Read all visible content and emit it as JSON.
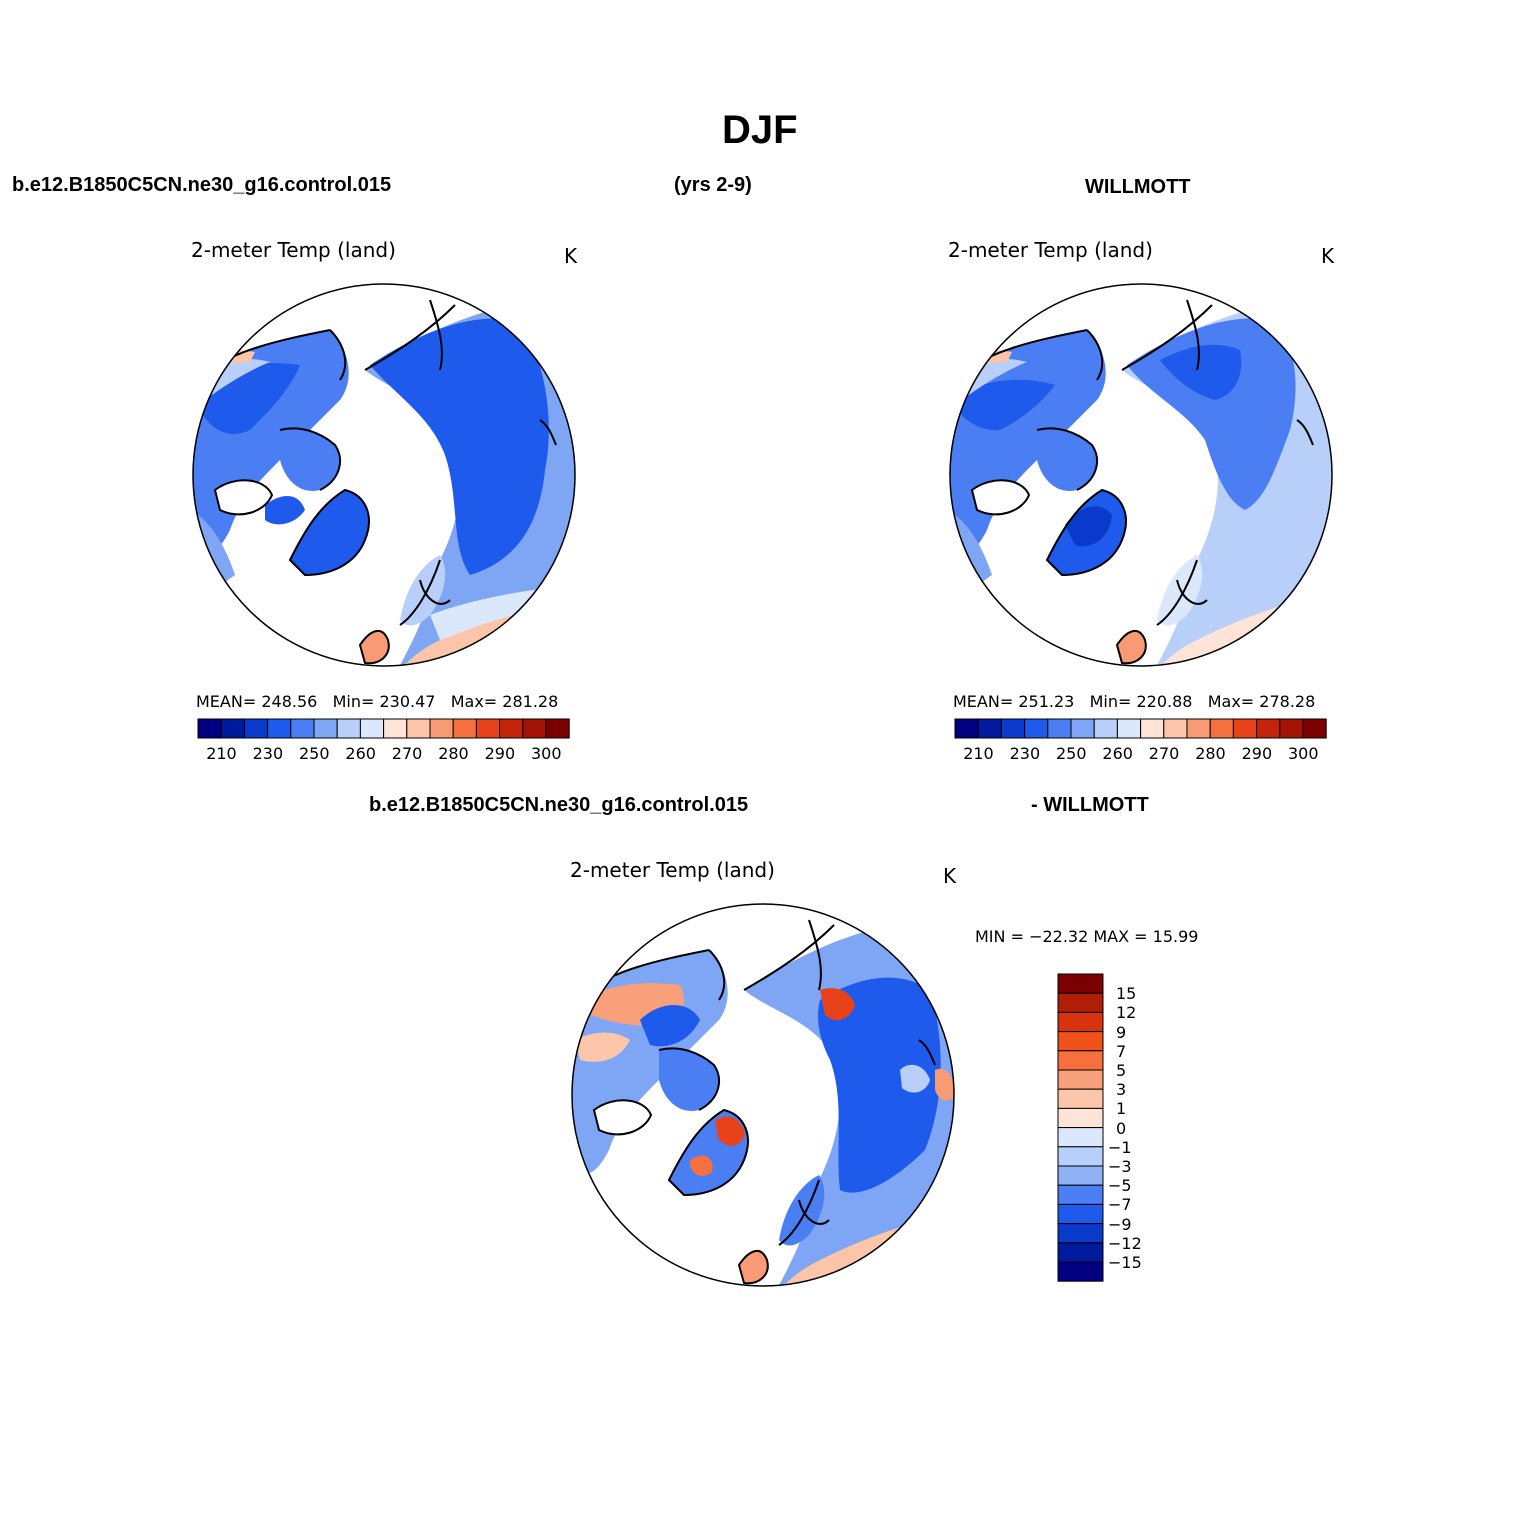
{
  "page": {
    "title": "DJF",
    "left_header": "b.e12.B1850C5CN.ne30_g16.control.015",
    "center_header": "(yrs 2-9)",
    "right_header": "WILLMOTT",
    "diff_header_left": "b.e12.B1850C5CN.ne30_g16.control.015",
    "diff_header_right": "- WILLMOTT"
  },
  "panels": [
    {
      "id": "model",
      "title": "2-meter Temp (land)",
      "units": "K",
      "stats": {
        "mean_label": "MEAN=",
        "mean": "248.56",
        "min_label": "Min=",
        "min": "230.47",
        "max_label": "Max=",
        "max": "281.28"
      }
    },
    {
      "id": "obs",
      "title": "2-meter Temp (land)",
      "units": "K",
      "stats": {
        "mean_label": "MEAN=",
        "mean": "251.23",
        "min_label": "Min=",
        "min": "220.88",
        "max_label": "Max=",
        "max": "278.28"
      }
    },
    {
      "id": "diff",
      "title": "2-meter Temp (land)",
      "units": "K",
      "minmax": "MIN = −22.32 MAX =   15.99"
    }
  ],
  "colorbar_abs": {
    "colors": [
      "#000080",
      "#001a9e",
      "#0a3acc",
      "#1e5aeb",
      "#4a7ef2",
      "#7fa6f5",
      "#b7cff9",
      "#dbe8fb",
      "#fde4d6",
      "#fcc5aa",
      "#f89a73",
      "#f5703f",
      "#e8421a",
      "#c42409",
      "#a31406",
      "#7d0000"
    ],
    "labels": [
      "210",
      "230",
      "250",
      "260",
      "270",
      "280",
      "290",
      "300"
    ]
  },
  "colorbar_diff": {
    "colors": [
      "#7d0000",
      "#b01e08",
      "#d8330e",
      "#f1511a",
      "#f76e3f",
      "#f8a07a",
      "#fcc6ab",
      "#fde4d6",
      "#dbe8fb",
      "#b7cff9",
      "#8fb1f6",
      "#4a7ef2",
      "#1e5aeb",
      "#0a3acc",
      "#001a9e",
      "#000080"
    ],
    "labels": [
      "15",
      "12",
      "9",
      "7",
      "5",
      "3",
      "1",
      "0",
      "−1",
      "−3",
      "−5",
      "−7",
      "−9",
      "−12",
      "−15"
    ]
  }
}
